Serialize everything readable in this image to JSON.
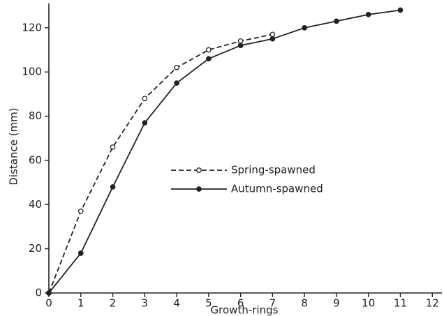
{
  "chart_data": {
    "type": "line",
    "x_label": "Growth-rings",
    "y_label": "Distance (mm)",
    "xlim": [
      0,
      12.3
    ],
    "xticks": [
      0,
      1,
      2,
      3,
      4,
      5,
      6,
      7,
      8,
      9,
      10,
      11,
      12
    ],
    "ylim": [
      0,
      131
    ],
    "yticks": [
      0,
      20,
      40,
      60,
      80,
      100,
      120
    ],
    "legend": "center",
    "series": [
      {
        "name": "Spring-spawned",
        "color": "#222222",
        "linestyle": "dashed",
        "marker": "open",
        "x": [
          0,
          1,
          2,
          3,
          4,
          5,
          6,
          7
        ],
        "values": [
          0,
          37,
          66,
          88,
          102,
          110,
          114,
          117
        ]
      },
      {
        "name": "Autumn-spawned",
        "color": "#222222",
        "linestyle": "solid",
        "marker": "filled",
        "x": [
          0,
          1,
          2,
          3,
          4,
          5,
          6,
          7,
          8,
          9,
          10,
          11
        ],
        "values": [
          0,
          18,
          48,
          77,
          95,
          106,
          112,
          115,
          120,
          123,
          126,
          128
        ]
      }
    ]
  }
}
